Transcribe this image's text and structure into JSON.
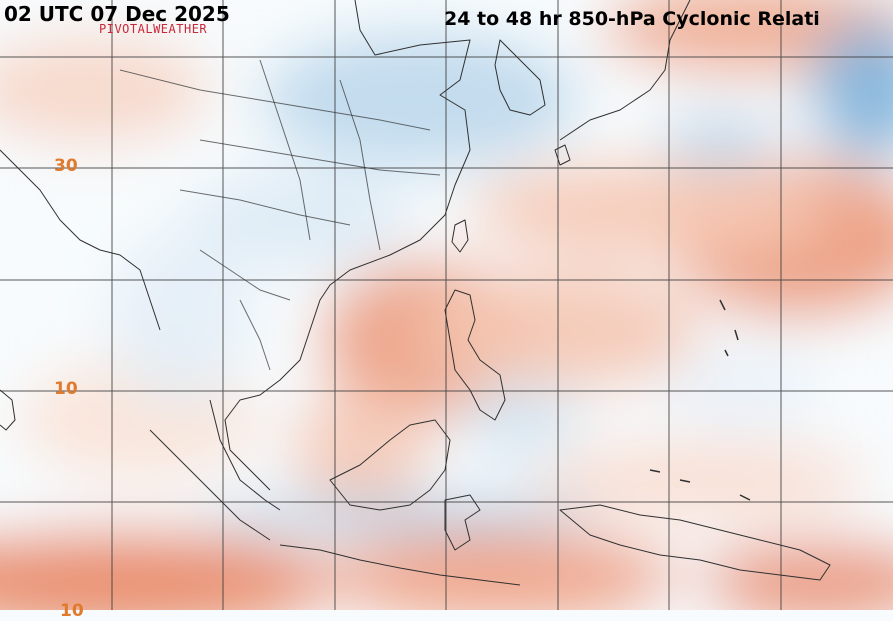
{
  "header": {
    "timestamp": "02 UTC 07 Dec 2025",
    "product": "24 to 48 hr 850-hPa Cyclonic Relati",
    "credit": "PIVOTALWEATHER"
  },
  "latitude_labels": [
    "30",
    "10",
    "10"
  ],
  "colors": {
    "background": "#f7fbfd",
    "positive": "#e8825f",
    "negative": "#4a8fc6",
    "grid": "#3a3a3a",
    "coast": "#303030",
    "lat_label": "#e07a2c",
    "credit": "#c8283a"
  }
}
